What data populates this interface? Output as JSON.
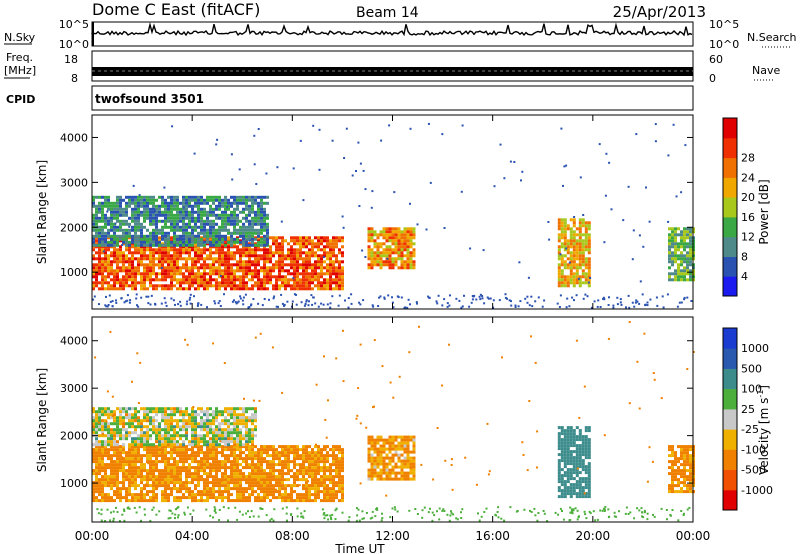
{
  "header": {
    "station": "Dome C East (fitACF)",
    "beam": "Beam 14",
    "date": "25/Apr/2013"
  },
  "strips": {
    "nsky_label": "N.Sky",
    "nsky_top": "10^5",
    "nsky_bottom": "10^0",
    "nsearch_top": "10^5",
    "nsearch_bottom": "10^0",
    "nsearch_label": "N.Search",
    "freq_label_1": "Freq.",
    "freq_label_2": "[MHz]",
    "freq_top": "18",
    "freq_bottom": "8",
    "nave_top": "60",
    "nave_bottom": "0",
    "nave_label": "Nave",
    "cpid_label": "CPID",
    "cpid_value": "twofsound 3501"
  },
  "panels": {
    "ylabel": "Slant Range [km]",
    "xlabel": "Time UT",
    "power_label": "Power [dB]",
    "velocity_label": "Velocity [m s",
    "velocity_label_sup": "-1",
    "velocity_label_close": "]"
  },
  "chart_data": [
    {
      "type": "heatmap",
      "name": "power",
      "x_ticks": [
        "00:00",
        "04:00",
        "08:00",
        "12:00",
        "16:00",
        "20:00",
        "00:00"
      ],
      "xlim_hours": [
        0,
        24
      ],
      "y_ticks": [
        1000,
        2000,
        3000,
        4000
      ],
      "ylim": [
        180,
        4500
      ],
      "colorbar_label": "Power [dB]",
      "colorbar_ticks": [
        "4",
        "8",
        "12",
        "16",
        "20",
        "24",
        "28"
      ],
      "colorbar_colors": [
        "#1b1bf0",
        "#2a52b0",
        "#4f8a8a",
        "#39a845",
        "#a8c81c",
        "#f0a800",
        "#f07000",
        "#f03000",
        "#e00000"
      ],
      "regions": [
        {
          "t0": 0.0,
          "t1": 10.0,
          "r0": 600,
          "r1": 1800,
          "level": 26
        },
        {
          "t0": 0.0,
          "t1": 7.0,
          "r0": 1600,
          "r1": 2700,
          "level": 8
        },
        {
          "t0": 11.0,
          "t1": 12.8,
          "r0": 1100,
          "r1": 2000,
          "level": 22
        },
        {
          "t0": 18.6,
          "t1": 19.8,
          "r0": 700,
          "r1": 2200,
          "level": 20
        },
        {
          "t0": 23.0,
          "t1": 24.0,
          "r0": 800,
          "r1": 2000,
          "level": 12
        }
      ]
    },
    {
      "type": "heatmap",
      "name": "velocity",
      "x_ticks": [
        "00:00",
        "04:00",
        "08:00",
        "12:00",
        "16:00",
        "20:00",
        "00:00"
      ],
      "xlim_hours": [
        0,
        24
      ],
      "y_ticks": [
        1000,
        2000,
        3000,
        4000
      ],
      "ylim": [
        180,
        4500
      ],
      "colorbar_label": "Velocity [m s^-1]",
      "colorbar_ticks": [
        "1000",
        "500",
        "100",
        "25",
        "-25",
        "-100",
        "-500",
        "-1000"
      ],
      "colorbar_colors": [
        "#1b3cd0",
        "#2a5ab0",
        "#3c8c8c",
        "#4caf3c",
        "#c8c8c8",
        "#f0b000",
        "#f08000",
        "#f05000",
        "#e00000"
      ],
      "regions": [
        {
          "t0": 0.0,
          "t1": 10.0,
          "r0": 600,
          "r1": 1800,
          "level": -150
        },
        {
          "t0": 0.0,
          "t1": 6.5,
          "r0": 1800,
          "r1": 2600,
          "level": 0
        },
        {
          "t0": 11.0,
          "t1": 12.8,
          "r0": 1100,
          "r1": 2000,
          "level": -120
        },
        {
          "t0": 18.6,
          "t1": 19.8,
          "r0": 700,
          "r1": 2200,
          "level": 300
        },
        {
          "t0": 23.0,
          "t1": 24.0,
          "r0": 800,
          "r1": 1800,
          "level": -150
        }
      ]
    }
  ]
}
